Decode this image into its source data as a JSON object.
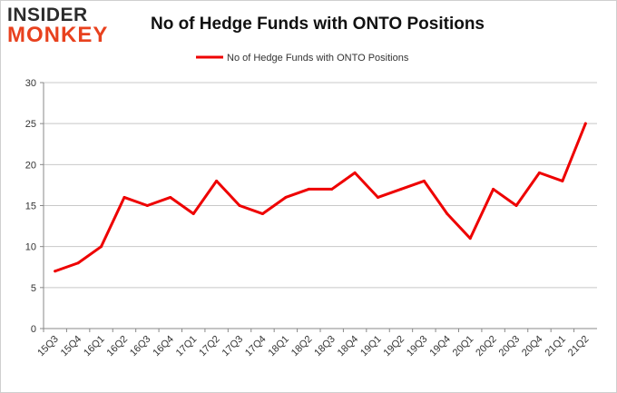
{
  "logo": {
    "line1": "INSIDER",
    "line2": "MONKEY"
  },
  "chart_data": {
    "type": "line",
    "title": "No of Hedge Funds with ONTO Positions",
    "xlabel": "",
    "ylabel": "",
    "categories": [
      "15Q3",
      "15Q4",
      "16Q1",
      "16Q2",
      "16Q3",
      "16Q4",
      "17Q1",
      "17Q2",
      "17Q3",
      "17Q4",
      "18Q1",
      "18Q2",
      "18Q3",
      "18Q4",
      "19Q1",
      "19Q2",
      "19Q3",
      "19Q4",
      "20Q1",
      "20Q2",
      "20Q3",
      "20Q4",
      "21Q1",
      "21Q2"
    ],
    "series": [
      {
        "name": "No of Hedge Funds with ONTO Positions",
        "values": [
          7,
          8,
          10,
          16,
          15,
          16,
          14,
          18,
          15,
          14,
          16,
          17,
          17,
          19,
          16,
          17,
          18,
          14,
          11,
          17,
          15,
          19,
          18,
          25
        ]
      }
    ],
    "ylim": [
      0,
      30
    ],
    "yticks": [
      0,
      5,
      10,
      15,
      20,
      25,
      30
    ],
    "grid": true,
    "legend_position": "top-center",
    "colors": {
      "line": "#ee0000",
      "grid": "#c8c8c8"
    }
  }
}
